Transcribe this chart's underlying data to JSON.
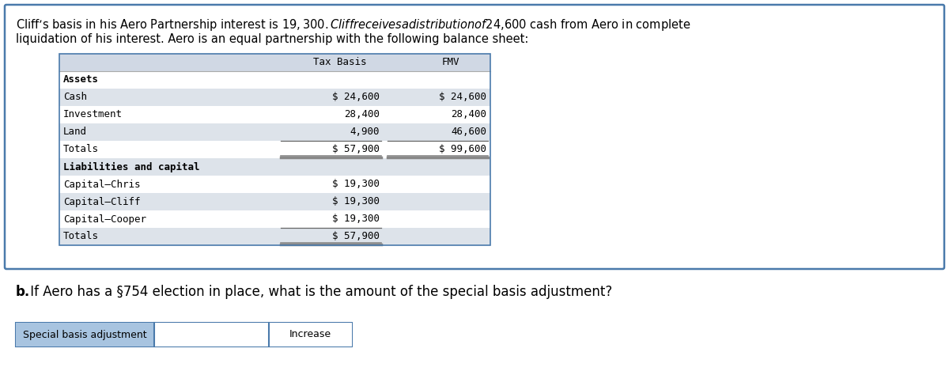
{
  "intro_text_line1": "Cliff’s basis in his Aero Partnership interest is $19,300. Cliff receives a distribution of $24,600 cash from Aero in complete",
  "intro_text_line2": "liquidation of his interest. Aero is an equal partnership with the following balance sheet:",
  "table_header": [
    "Tax Basis",
    "FMV"
  ],
  "table_header_bg": "#d0d8e4",
  "table_border_color": "#4a7aab",
  "section1_label": "Assets",
  "rows_assets": [
    [
      "Cash",
      "$ 24,600",
      "$ 24,600"
    ],
    [
      "Investment",
      "28,400",
      "28,400"
    ],
    [
      "Land",
      "4,900",
      "46,600"
    ]
  ],
  "totals_assets": [
    "Totals",
    "$ 57,900",
    "$ 99,600"
  ],
  "section2_label": "Liabilities and capital",
  "rows_capital": [
    [
      "Capital–Chris",
      "$ 19,300",
      ""
    ],
    [
      "Capital–Cliff",
      "$ 19,300",
      ""
    ],
    [
      "Capital–Cooper",
      "$ 19,300",
      ""
    ]
  ],
  "totals_capital": [
    "Totals",
    "$ 57,900",
    ""
  ],
  "question_b": "b.",
  "question_rest": " If Aero has a §754 election in place, what is the amount of the special basis adjustment?",
  "label1": "Special basis adjustment",
  "label2": "Increase",
  "bg_white": "#ffffff",
  "text_color": "#000000",
  "mono_font": "monospace",
  "sans_font": "DejaVu Sans",
  "outer_border_color": "#4a7aab",
  "input_box_bg": "#a8c4e0",
  "row_white": "#ffffff",
  "row_gray": "#dde3ea",
  "underline_color": "#666666",
  "double_line_color": "#888888"
}
